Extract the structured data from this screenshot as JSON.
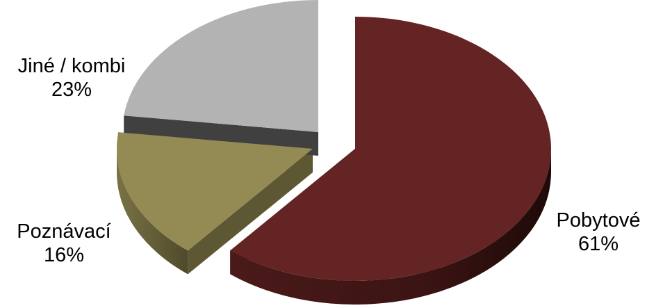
{
  "chart_data": {
    "type": "pie",
    "title": "",
    "exploded_3d": true,
    "slices": [
      {
        "label": "Pobytové",
        "value": 61,
        "percent_label": "61%",
        "color": "#632423",
        "side_color": "#3e1615"
      },
      {
        "label": "Poznávací",
        "value": 16,
        "percent_label": "16%",
        "color": "#948a54",
        "side_color": "#5e5733"
      },
      {
        "label": "Jiné / kombi",
        "value": 23,
        "percent_label": "23%",
        "color": "#b3b3b3",
        "side_color": "#404040"
      }
    ]
  }
}
